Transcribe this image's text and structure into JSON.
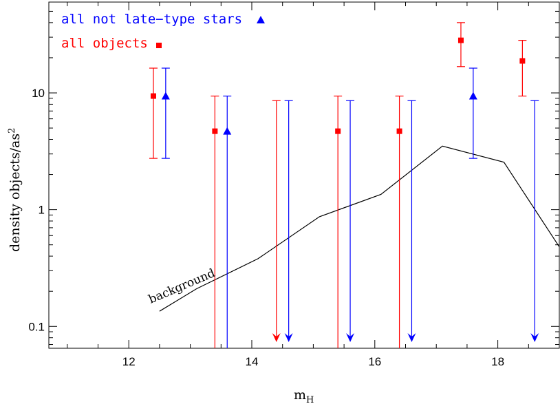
{
  "chart_data": {
    "type": "scatter",
    "xlabel": "m",
    "xlabel_sub": "H",
    "ylabel": "density objects/as",
    "ylabel_sup": "2",
    "xlim": [
      10.7,
      19.0
    ],
    "ylim": [
      0.065,
      60
    ],
    "yscale": "log",
    "xticks": [
      12,
      14,
      16,
      18
    ],
    "xtick_labels": [
      "12",
      "14",
      "16",
      "18"
    ],
    "yticks": [
      0.1,
      1,
      10
    ],
    "ytick_labels": [
      "0.1",
      "1",
      "10"
    ],
    "grid": false,
    "legend_placement": "top-left",
    "series": [
      {
        "name": "all objects",
        "color": "#ff0000",
        "marker": "square",
        "points": [
          {
            "x": 12.4,
            "y": 9.4,
            "ylo": 2.75,
            "yhi": 16.3
          },
          {
            "x": 13.4,
            "y": 4.7,
            "ylo": 0.065,
            "yhi": 9.4
          },
          {
            "x": 15.4,
            "y": 4.7,
            "ylo": 0.065,
            "yhi": 9.4
          },
          {
            "x": 16.4,
            "y": 4.7,
            "ylo": 0.065,
            "yhi": 9.4
          },
          {
            "x": 17.4,
            "y": 28.2,
            "ylo": 16.8,
            "yhi": 40.0
          },
          {
            "x": 18.4,
            "y": 18.8,
            "ylo": 9.4,
            "yhi": 28.2
          }
        ],
        "upper_limits": [
          {
            "x": 14.4,
            "y": 8.6
          }
        ]
      },
      {
        "name": "all not late−type stars",
        "color": "#0000ff",
        "marker": "triangle",
        "points": [
          {
            "x": 12.6,
            "y": 9.4,
            "ylo": 2.75,
            "yhi": 16.3
          },
          {
            "x": 13.6,
            "y": 4.7,
            "ylo": 0.065,
            "yhi": 9.4
          },
          {
            "x": 17.6,
            "y": 9.4,
            "ylo": 2.75,
            "yhi": 16.3
          }
        ],
        "upper_limits": [
          {
            "x": 14.6,
            "y": 8.6
          },
          {
            "x": 15.6,
            "y": 8.6
          },
          {
            "x": 16.6,
            "y": 8.6
          },
          {
            "x": 18.6,
            "y": 8.6
          }
        ]
      }
    ],
    "background": {
      "label": "background",
      "color": "#000000",
      "x": [
        12.5,
        13.1,
        14.1,
        15.1,
        16.1,
        17.1,
        18.1,
        19.0
      ],
      "y": [
        0.135,
        0.21,
        0.38,
        0.87,
        1.35,
        3.5,
        2.55,
        0.48
      ]
    }
  }
}
